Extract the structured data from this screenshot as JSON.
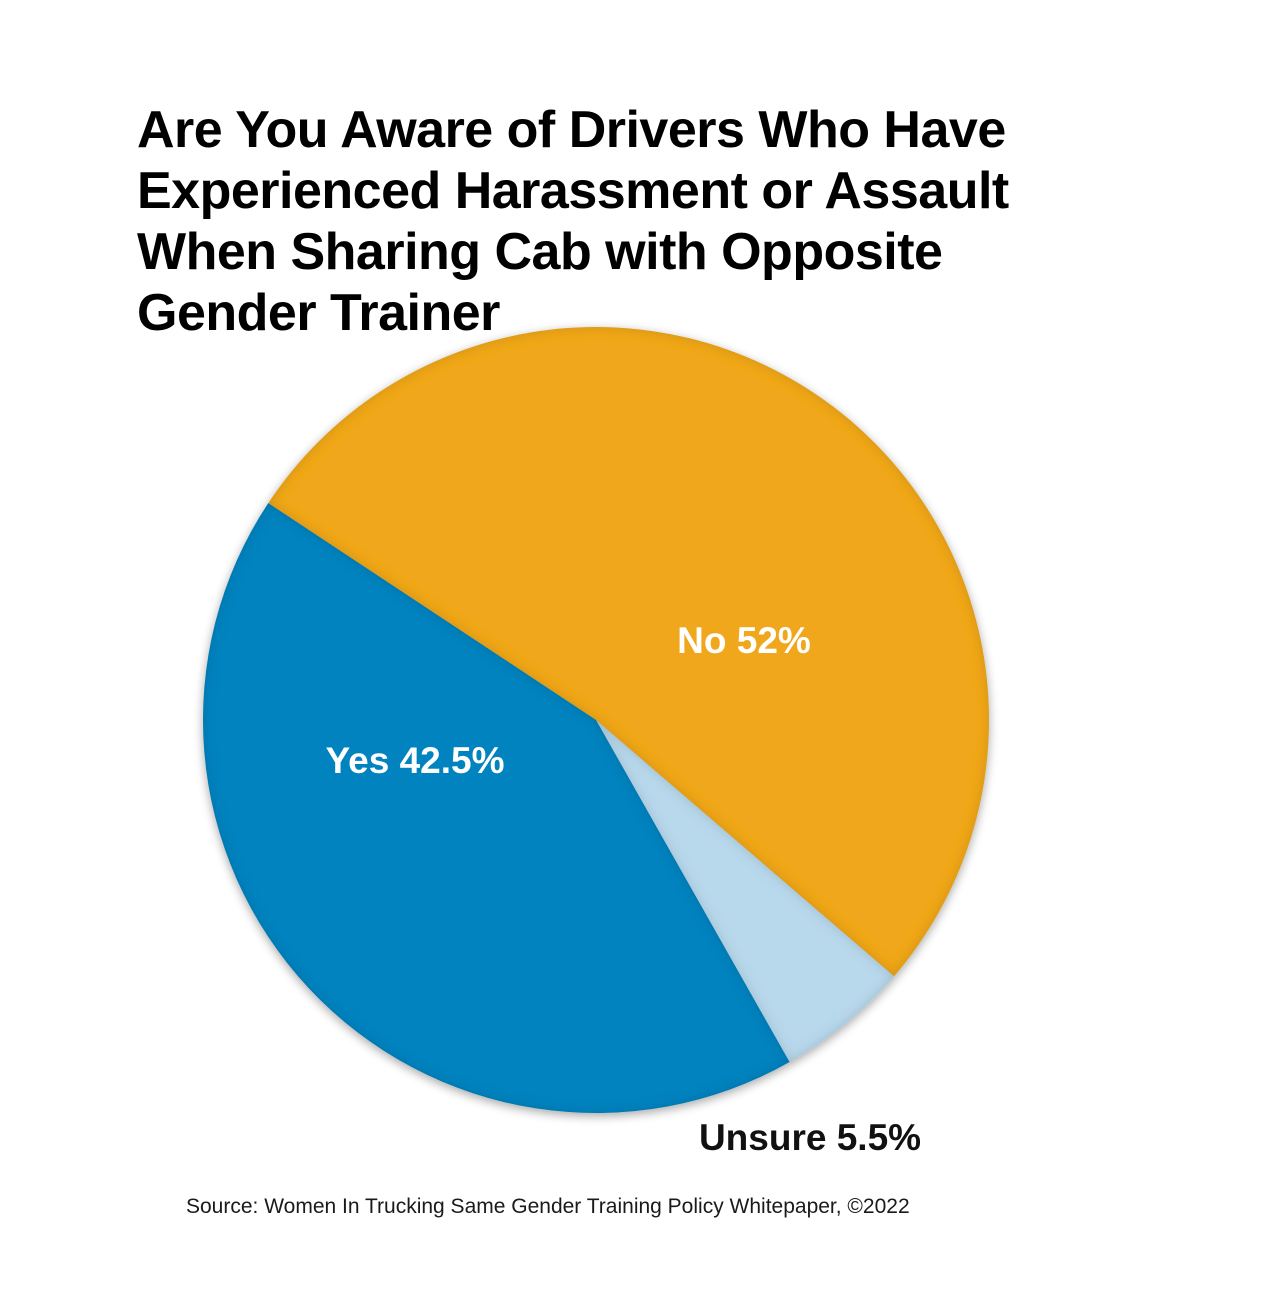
{
  "chart_data": {
    "type": "pie",
    "title_lines": [
      "Are You Aware of Drivers Who Have",
      "Experienced Harassment or Assault",
      "When Sharing Cab with Opposite",
      "Gender Trainer"
    ],
    "slices": [
      {
        "label": "No 52%",
        "value": 52,
        "color": "#f0a71f"
      },
      {
        "label": "Unsure 5.5%",
        "value": 5.5,
        "color": "#b8d8ec"
      },
      {
        "label": "Yes 42.5%",
        "value": 42.5,
        "color": "#0583bf"
      }
    ],
    "legend": "none"
  },
  "source": "Source: Women In Trucking Same Gender Training Policy Whitepaper, ©2022"
}
